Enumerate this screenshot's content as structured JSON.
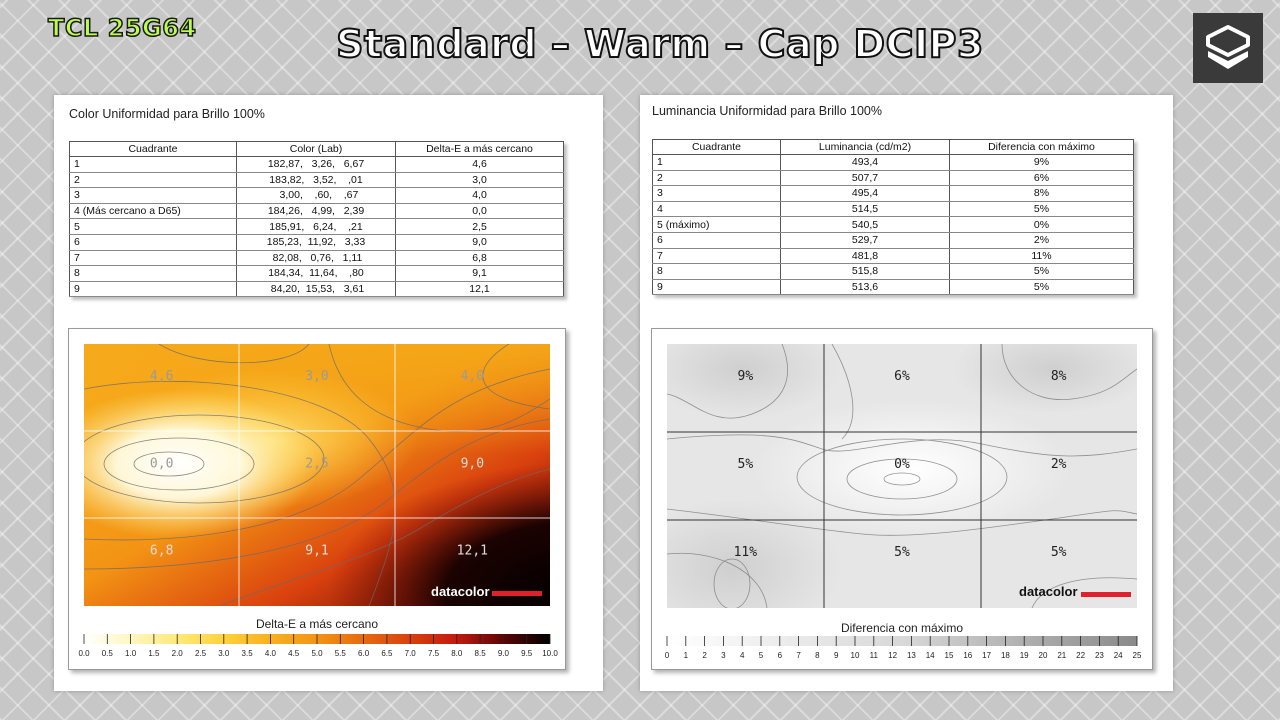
{
  "header": {
    "model": "TCL 25G64",
    "title": "Standard – Warm – Cap DCIP3"
  },
  "left": {
    "title": "Color Uniformidad para Brillo 100%",
    "columns": [
      "Cuadrante",
      "Color (Lab)",
      "Delta-E a más cercano"
    ],
    "rows": [
      {
        "q": "1",
        "lab": "182,87,   3,26,   6,67",
        "de": "4,6"
      },
      {
        "q": "2",
        "lab": "183,82,   3,52,    ,01",
        "de": "3,0"
      },
      {
        "q": "3",
        "lab": "  3,00,    ,60,    ,67",
        "de": "4,0"
      },
      {
        "q": "4 (Más cercano a D65)",
        "lab": "184,26,   4,99,   2,39",
        "de": "0,0"
      },
      {
        "q": "5",
        "lab": "185,91,   6,24,    ,21",
        "de": "2,5"
      },
      {
        "q": "6",
        "lab": "185,23,  11,92,   3,33",
        "de": "9,0"
      },
      {
        "q": "7",
        "lab": " 82,08,   0,76,   1,11",
        "de": "6,8"
      },
      {
        "q": "8",
        "lab": "184,34,  11,64,    ,80",
        "de": "9,1"
      },
      {
        "q": "9",
        "lab": " 84,20,  15,53,   3,61",
        "de": "12,1"
      }
    ],
    "map_values": [
      "4,6",
      "3,0",
      "4,0",
      "0,0",
      "2,5",
      "9,0",
      "6,8",
      "9,1",
      "12,1"
    ],
    "map_label": "Delta-E a más cercano",
    "scale": [
      "0.0",
      "0.5",
      "1.0",
      "1.5",
      "2.0",
      "2.5",
      "3.0",
      "3.5",
      "4.0",
      "4.5",
      "5.0",
      "5.5",
      "6.0",
      "6.5",
      "7.0",
      "7.5",
      "8.0",
      "8.5",
      "9.0",
      "9.5",
      "10.0"
    ],
    "brand": "datacolor",
    "colors": [
      "#ffffff",
      "#fff7c0",
      "#ffe97a",
      "#ffd23a",
      "#f8b020",
      "#f39414",
      "#e66a10",
      "#d9400e",
      "#c3190f",
      "#8e0c08",
      "#3a0303",
      "#000000"
    ]
  },
  "right": {
    "title": "Luminancia Uniformidad para Brillo 100%",
    "columns": [
      "Cuadrante",
      "Luminancia (cd/m2)",
      "Diferencia con máximo"
    ],
    "rows": [
      {
        "q": "1",
        "lum": "493,4",
        "diff": "9%"
      },
      {
        "q": "2",
        "lum": "507,7",
        "diff": "6%"
      },
      {
        "q": "3",
        "lum": "495,4",
        "diff": "8%"
      },
      {
        "q": "4",
        "lum": "514,5",
        "diff": "5%"
      },
      {
        "q": "5 (máximo)",
        "lum": "540,5",
        "diff": "0%"
      },
      {
        "q": "6",
        "lum": "529,7",
        "diff": "2%"
      },
      {
        "q": "7",
        "lum": "481,8",
        "diff": "11%"
      },
      {
        "q": "8",
        "lum": "515,8",
        "diff": "5%"
      },
      {
        "q": "9",
        "lum": "513,6",
        "diff": "5%"
      }
    ],
    "map_values": [
      "9%",
      "6%",
      "8%",
      "5%",
      "0%",
      "2%",
      "11%",
      "5%",
      "5%"
    ],
    "map_label": "Diferencia con máximo",
    "scale": [
      "0",
      "1",
      "2",
      "3",
      "4",
      "5",
      "6",
      "7",
      "8",
      "9",
      "10",
      "11",
      "12",
      "13",
      "14",
      "15",
      "16",
      "17",
      "18",
      "19",
      "20",
      "21",
      "22",
      "23",
      "24",
      "25"
    ],
    "brand": "datacolor"
  }
}
